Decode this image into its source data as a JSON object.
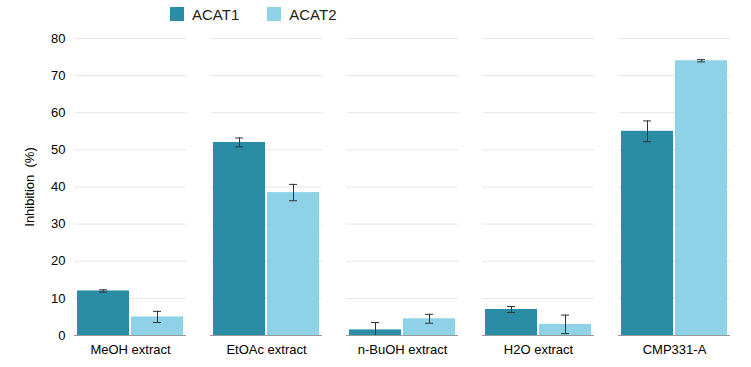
{
  "chart_data": {
    "type": "bar",
    "categories": [
      "MeOH extract",
      "EtOAc extract",
      "n-BuOH extract",
      "H2O extract",
      "CMP331-A"
    ],
    "series": [
      {
        "name": "ACAT1",
        "color": "#2b8ca6",
        "values": [
          12,
          52,
          1.5,
          7,
          55
        ],
        "errors": [
          0.3,
          1.2,
          2,
          0.8,
          2.8
        ]
      },
      {
        "name": "ACAT2",
        "color": "#8fd1e6",
        "values": [
          5,
          38.5,
          4.5,
          3,
          74
        ],
        "errors": [
          1.5,
          2.2,
          1.2,
          2.5,
          0.3
        ]
      }
    ],
    "y_label": "Inhibition  (%)",
    "ylim": [
      0,
      80
    ],
    "yticks": [
      0,
      10,
      20,
      30,
      40,
      50,
      60,
      70,
      80
    ],
    "grid": true,
    "legend": "top-left"
  }
}
